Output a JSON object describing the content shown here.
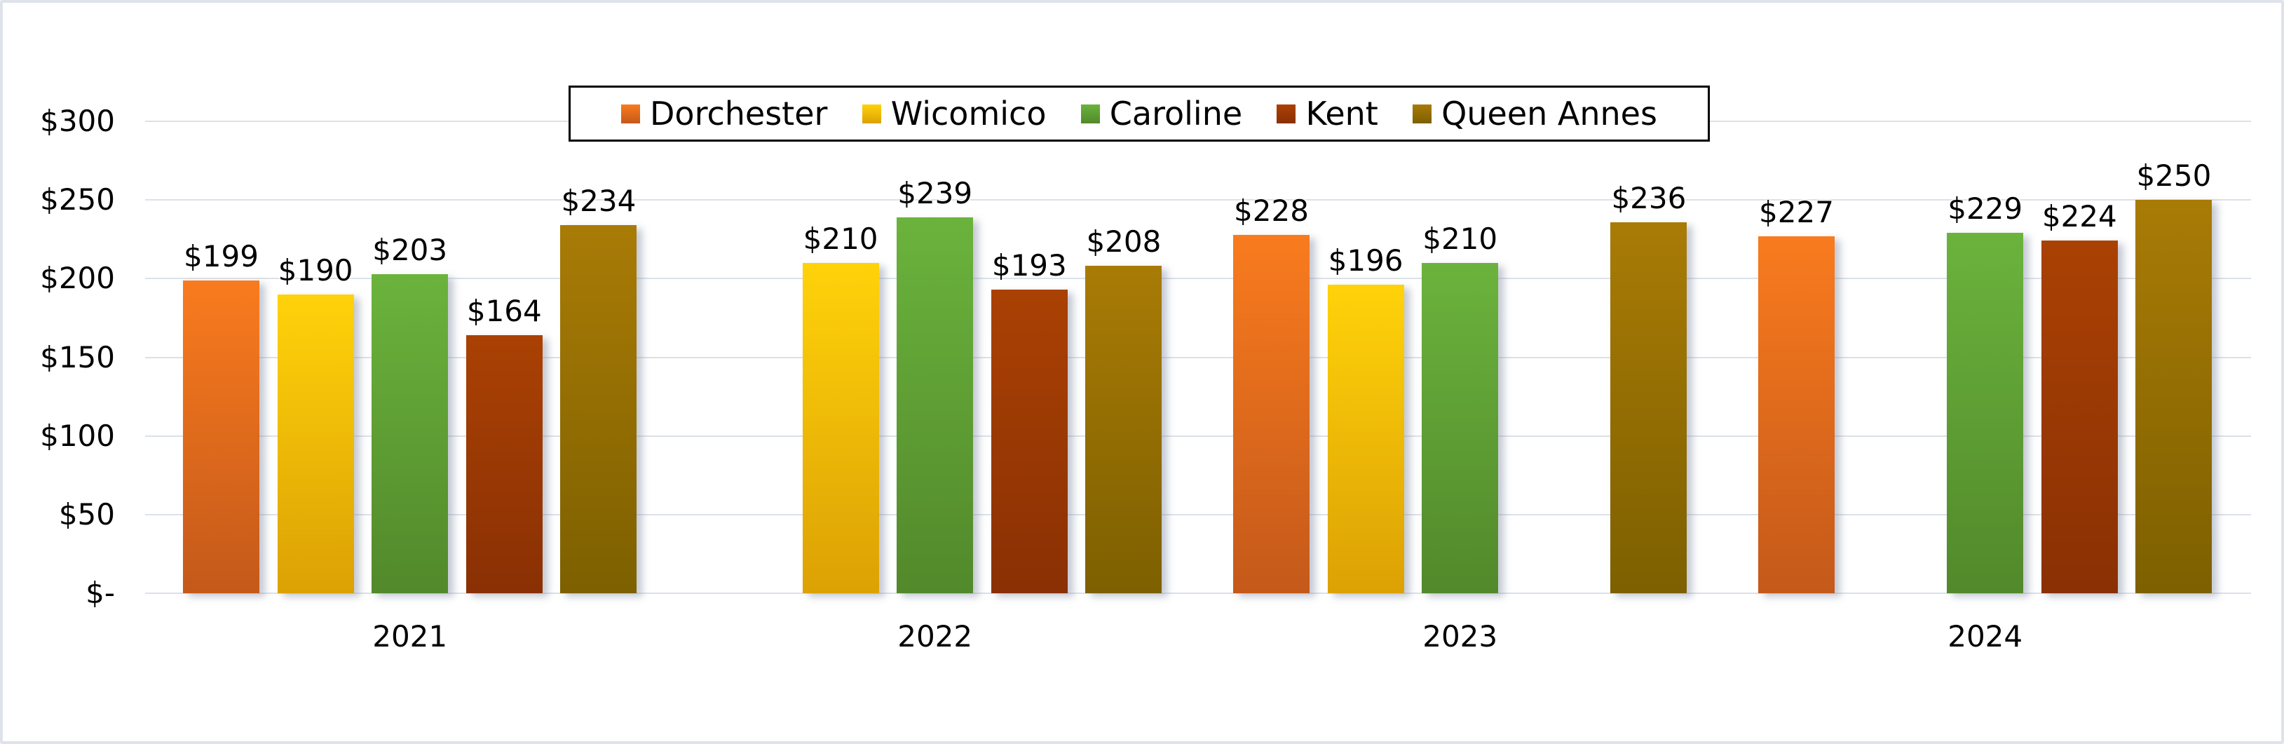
{
  "chart_data": {
    "type": "bar",
    "title": "",
    "categories": [
      "2021",
      "2022",
      "2023",
      "2024"
    ],
    "series": [
      {
        "name": "Dorchester",
        "values": [
          199,
          null,
          228,
          227
        ],
        "color_top": "#F97B1E",
        "color_bottom": "#C4591A"
      },
      {
        "name": "Wicomico",
        "values": [
          190,
          210,
          196,
          null
        ],
        "color_top": "#FFD20A",
        "color_bottom": "#DCA104"
      },
      {
        "name": "Caroline",
        "values": [
          203,
          239,
          210,
          229
        ],
        "color_top": "#6BB33D",
        "color_bottom": "#52892B"
      },
      {
        "name": "Kent",
        "values": [
          164,
          193,
          null,
          224
        ],
        "color_top": "#AA4104",
        "color_bottom": "#8A3004"
      },
      {
        "name": "Queen Annes",
        "values": [
          234,
          208,
          236,
          250
        ],
        "color_top": "#A97B06",
        "color bottom_unused": "",
        "color_bottom": "#7D6000"
      }
    ],
    "value_prefix": "$",
    "y_axis": {
      "min": 0,
      "max": 300,
      "ticks": [
        {
          "label": "$300",
          "value": 300
        },
        {
          "label": "$250",
          "value": 250
        },
        {
          "label": "$200",
          "value": 200
        },
        {
          "label": "$150",
          "value": 150
        },
        {
          "label": "$100",
          "value": 100
        },
        {
          "label": "$50",
          "value": 50
        },
        {
          "label": "$-",
          "value": 0
        }
      ]
    },
    "legend": {
      "position": "top",
      "entries": [
        "Dorchester",
        "Wicomico",
        "Caroline",
        "Kent",
        "Queen Annes"
      ]
    },
    "grid": true,
    "colors": {
      "gridline": "#dce1e9",
      "text": "#000000",
      "legend_border": "#000000",
      "frame_border": "#dee3eb",
      "background": "#ffffff"
    }
  }
}
